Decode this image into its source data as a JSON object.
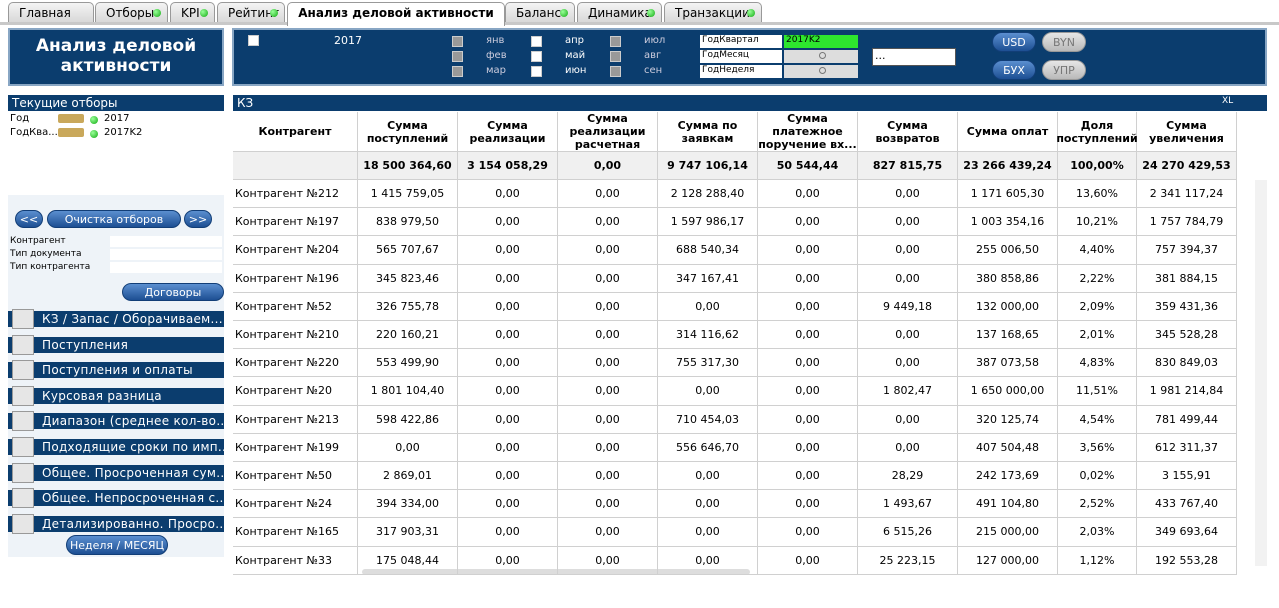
{
  "tabs": [
    "Главная",
    "Отборы",
    "KPI",
    "Рейтинг",
    "Анализ деловой активности",
    "Баланс",
    "Динамика",
    "Транзакции"
  ],
  "active_tab": 4,
  "header": {
    "title": "Анализ деловой активности"
  },
  "filters": {
    "year": "2017",
    "months": [
      "янв",
      "фев",
      "мар",
      "апр",
      "май",
      "июн",
      "июл",
      "авг",
      "сен"
    ],
    "fields": [
      {
        "label": "ГодКвартал",
        "value": "2017K2"
      },
      {
        "label": "ГодМесяц"
      },
      {
        "label": "ГодНеделя"
      }
    ],
    "select": "...",
    "currency": [
      "USD",
      "BYN"
    ],
    "mode": [
      "БУХ",
      "УПР"
    ]
  },
  "left_panel": {
    "title": "Текущие отборы",
    "selections": [
      [
        "Год",
        "2017"
      ],
      [
        "ГодКва...",
        "2017K2"
      ]
    ],
    "nav": [
      "<<",
      "Очистка отборов",
      ">>"
    ],
    "lists": [
      "Контрагент",
      "Тип документа",
      "Тип контрагента"
    ],
    "contracts": "Договоры",
    "menu": [
      "КЗ / Запас / Оборачиваем...",
      "Поступления",
      "Поступления и оплаты",
      "Курсовая разница",
      "Диапазон (среднее кол-во...",
      "Подходящие сроки по имп...",
      "Общее. Просроченная сум...",
      "Общее. Непросроченная с...",
      "Детализированно. Просро..."
    ],
    "period": "Неделя / МЕСЯЦ"
  },
  "table": {
    "title": "КЗ",
    "export": "XL",
    "columns": [
      "Контрагент",
      "Сумма поступлений",
      "Сумма реализации",
      "Сумма реализации расчетная",
      "Сумма по заявкам",
      "Сумма платежное поручение вх...",
      "Сумма возвратов",
      "Сумма оплат",
      "Доля поступлений",
      "Сумма увеличения"
    ],
    "totals": [
      "18 500 364,60",
      "3 154 058,29",
      "0,00",
      "9 747 106,14",
      "50 544,44",
      "827 815,75",
      "23 266 439,24",
      "100,00%",
      "24 270 429,53"
    ],
    "rows": [
      [
        "Контрагент №212",
        "1 415 759,05",
        "0,00",
        "0,00",
        "2 128 288,40",
        "0,00",
        "0,00",
        "1 171 605,30",
        "13,60%",
        "2 341 117,24"
      ],
      [
        "Контрагент №197",
        "838 979,50",
        "0,00",
        "0,00",
        "1 597 986,17",
        "0,00",
        "0,00",
        "1 003 354,16",
        "10,21%",
        "1 757 784,79"
      ],
      [
        "Контрагент №204",
        "565 707,67",
        "0,00",
        "0,00",
        "688 540,34",
        "0,00",
        "0,00",
        "255 006,50",
        "4,40%",
        "757 394,37"
      ],
      [
        "Контрагент №196",
        "345 823,46",
        "0,00",
        "0,00",
        "347 167,41",
        "0,00",
        "0,00",
        "380 858,86",
        "2,22%",
        "381 884,15"
      ],
      [
        "Контрагент №52",
        "326 755,78",
        "0,00",
        "0,00",
        "0,00",
        "0,00",
        "9 449,18",
        "132 000,00",
        "2,09%",
        "359 431,36"
      ],
      [
        "Контрагент №210",
        "220 160,21",
        "0,00",
        "0,00",
        "314 116,62",
        "0,00",
        "0,00",
        "137 168,65",
        "2,01%",
        "345 528,28"
      ],
      [
        "Контрагент №220",
        "553 499,90",
        "0,00",
        "0,00",
        "755 317,30",
        "0,00",
        "0,00",
        "387 073,58",
        "4,83%",
        "830 849,03"
      ],
      [
        "Контрагент №20",
        "1 801 104,40",
        "0,00",
        "0,00",
        "0,00",
        "0,00",
        "1 802,47",
        "1 650 000,00",
        "11,51%",
        "1 981 214,84"
      ],
      [
        "Контрагент №213",
        "598 422,86",
        "0,00",
        "0,00",
        "710 454,03",
        "0,00",
        "0,00",
        "320 125,74",
        "4,54%",
        "781 499,44"
      ],
      [
        "Контрагент №199",
        "0,00",
        "0,00",
        "0,00",
        "556 646,70",
        "0,00",
        "0,00",
        "407 504,48",
        "3,56%",
        "612 311,37"
      ],
      [
        "Контрагент №50",
        "2 869,01",
        "0,00",
        "0,00",
        "0,00",
        "0,00",
        "28,29",
        "242 173,69",
        "0,02%",
        "3 155,91"
      ],
      [
        "Контрагент №24",
        "394 334,00",
        "0,00",
        "0,00",
        "0,00",
        "0,00",
        "1 493,67",
        "491 104,80",
        "2,52%",
        "433 767,40"
      ],
      [
        "Контрагент №165",
        "317 903,31",
        "0,00",
        "0,00",
        "0,00",
        "0,00",
        "6 515,26",
        "215 000,00",
        "2,03%",
        "349 693,64"
      ],
      [
        "Контрагент №33",
        "175 048,44",
        "0,00",
        "0,00",
        "0,00",
        "0,00",
        "25 223,15",
        "127 000,00",
        "1,12%",
        "192 553,28"
      ]
    ]
  }
}
